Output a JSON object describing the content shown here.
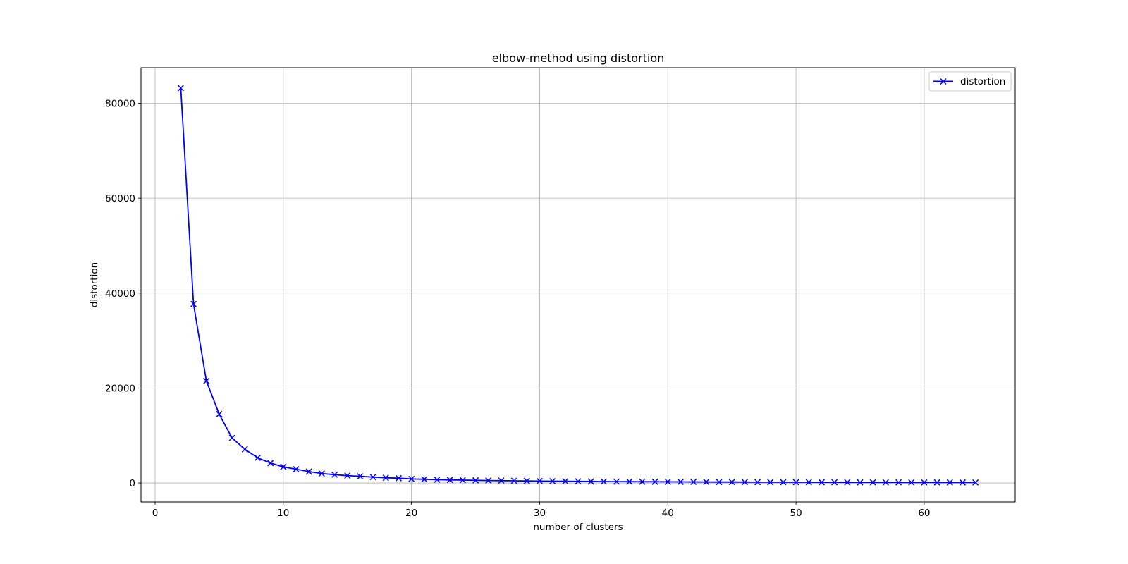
{
  "chart_data": {
    "type": "line",
    "title": "elbow-method using distortion",
    "xlabel": "number of clusters",
    "ylabel": "distortion",
    "xlim": [
      -1.1,
      67.1
    ],
    "ylim": [
      -4000,
      87500
    ],
    "xticks": [
      0,
      10,
      20,
      30,
      40,
      50,
      60
    ],
    "xtick_labels": [
      "0",
      "10",
      "20",
      "30",
      "40",
      "50",
      "60"
    ],
    "yticks": [
      0,
      20000,
      40000,
      60000,
      80000
    ],
    "ytick_labels": [
      "0",
      "20000",
      "40000",
      "60000",
      "80000"
    ],
    "grid": true,
    "legend_position": "top-right",
    "series": [
      {
        "name": "distortion",
        "color": "#0000ff",
        "marker": "x",
        "x": [
          2,
          3,
          4,
          5,
          6,
          7,
          8,
          9,
          10,
          11,
          12,
          13,
          14,
          15,
          16,
          17,
          18,
          19,
          20,
          21,
          22,
          23,
          24,
          25,
          26,
          27,
          28,
          29,
          30,
          31,
          32,
          33,
          34,
          35,
          36,
          37,
          38,
          39,
          40,
          41,
          42,
          43,
          44,
          45,
          46,
          47,
          48,
          49,
          50,
          51,
          52,
          53,
          54,
          55,
          56,
          57,
          58,
          59,
          60,
          61,
          62,
          63,
          64
        ],
        "values": [
          83200,
          37700,
          21500,
          14500,
          9500,
          7100,
          5300,
          4200,
          3400,
          2900,
          2400,
          2000,
          1750,
          1550,
          1400,
          1250,
          1100,
          1000,
          850,
          780,
          700,
          650,
          600,
          560,
          520,
          490,
          460,
          430,
          400,
          380,
          360,
          340,
          320,
          300,
          290,
          280,
          270,
          260,
          250,
          240,
          230,
          220,
          210,
          200,
          190,
          180,
          170,
          165,
          160,
          155,
          150,
          145,
          140,
          135,
          130,
          125,
          120,
          118,
          116,
          114,
          112,
          110,
          108
        ]
      }
    ]
  }
}
